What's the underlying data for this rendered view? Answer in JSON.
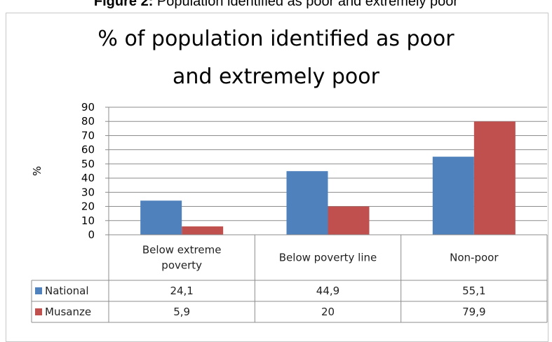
{
  "caption": {
    "bold": "Figure 2:",
    "text": " Population identified as poor and extremely poor"
  },
  "chart_data": {
    "type": "bar",
    "title": "% of population identified as poor and extremely poor",
    "title_lines": [
      "% of population identified as poor",
      "and extremely poor"
    ],
    "ylabel": "%",
    "xlabel": "",
    "ylim": [
      0,
      90
    ],
    "yticks": [
      "0",
      "10",
      "20",
      "30",
      "40",
      "50",
      "60",
      "70",
      "80",
      "90"
    ],
    "grid": true,
    "legend_placement": "data-table",
    "categories": [
      "Below extreme poverty",
      "Below poverty line",
      "Non-poor"
    ],
    "category_lines": [
      [
        "Below extreme",
        "poverty"
      ],
      [
        "Below poverty line"
      ],
      [
        "Non-poor"
      ]
    ],
    "series": [
      {
        "name": "National",
        "values": [
          24.1,
          44.9,
          55.1
        ],
        "labels": [
          "24,1",
          "44,9",
          "55,1"
        ],
        "color": "#4f81bd"
      },
      {
        "name": "Musanze",
        "values": [
          5.9,
          20,
          79.9
        ],
        "labels": [
          "5,9",
          "20",
          "79,9"
        ],
        "color": "#c0504d"
      }
    ]
  }
}
